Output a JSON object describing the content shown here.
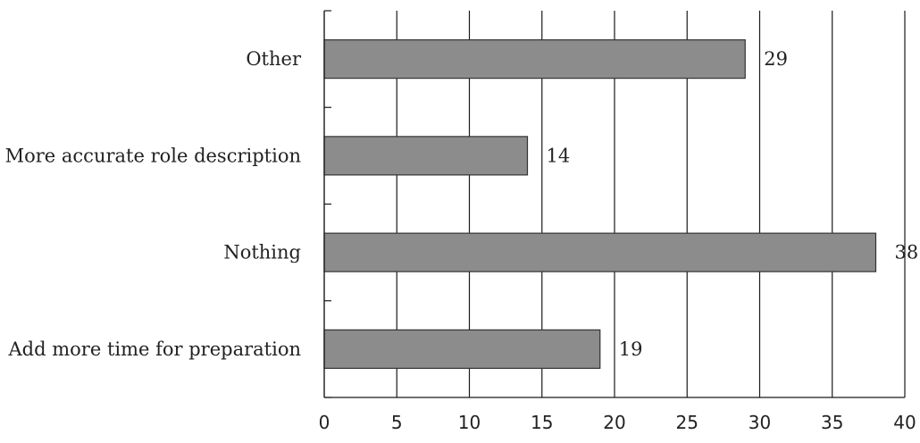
{
  "chart_data": {
    "type": "bar",
    "orientation": "horizontal",
    "categories": [
      "Other",
      "More accurate role description",
      "Nothing",
      "Add more time for preparation"
    ],
    "values": [
      29,
      14,
      38,
      19
    ],
    "value_labels": [
      "29",
      "14",
      "38",
      "19"
    ],
    "xticks": [
      "0",
      "5",
      "10",
      "15",
      "20",
      "25",
      "30",
      "35",
      "40"
    ],
    "xlim": [
      0,
      40
    ],
    "grid": true,
    "bar_color": "#8c8c8c",
    "bar_border_color": "#333333",
    "grid_color": "#1a1a1a"
  }
}
